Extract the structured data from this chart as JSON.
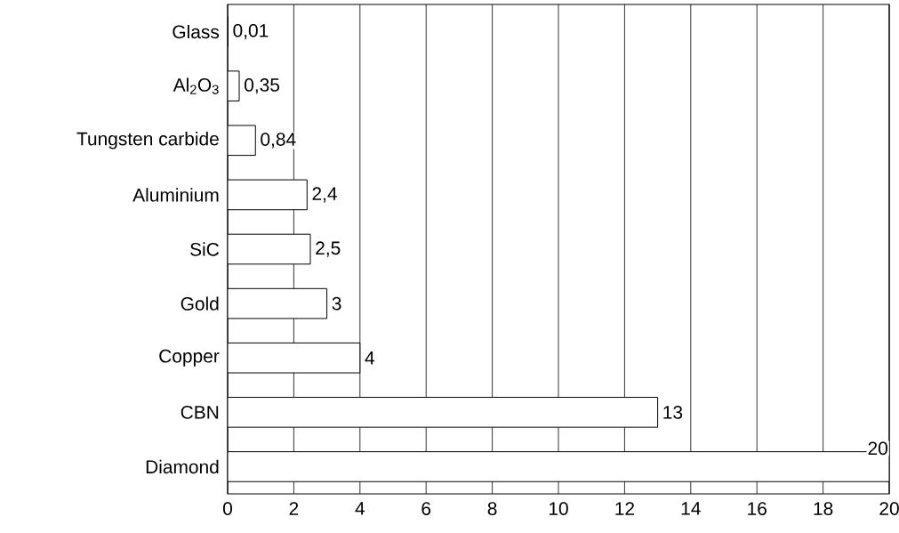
{
  "chart_data": {
    "type": "bar",
    "orientation": "horizontal",
    "categories": [
      "Glass",
      "Al$_{2}$O$_{3}$",
      "Tungsten carbide",
      "Aluminium",
      "SiC",
      "Gold",
      "Copper",
      "CBN",
      "Diamond"
    ],
    "values": [
      0.01,
      0.35,
      0.84,
      2.4,
      2.5,
      3,
      4,
      13,
      20
    ],
    "value_labels": [
      "0,01",
      "0,35",
      "0,84",
      "2,4",
      "2,5",
      "3",
      "4",
      "13",
      "20"
    ],
    "color": "#ffffff",
    "xlim": [
      0,
      20
    ],
    "xticks": [
      0,
      2,
      4,
      6,
      8,
      10,
      12,
      14,
      16,
      18,
      20
    ],
    "grid": "x"
  }
}
